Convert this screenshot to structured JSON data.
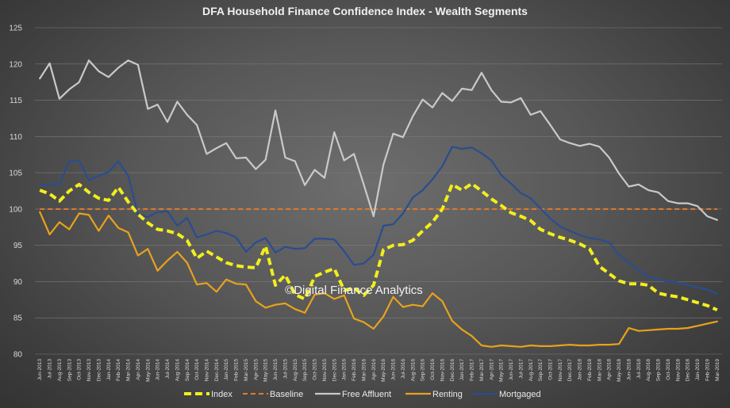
{
  "chart_data": {
    "type": "line",
    "title": "DFA Household Finance Confidence Index - Wealth Segments",
    "watermark": "©Digital Finance Analytics",
    "ylim": [
      80,
      125
    ],
    "yticks": [
      80,
      85,
      90,
      95,
      100,
      105,
      110,
      115,
      120,
      125
    ],
    "grid": "horizontal",
    "legend_position": "bottom",
    "x": [
      "Jun-2013",
      "Jul-2013",
      "Aug-2013",
      "Sep-2013",
      "Oct-2013",
      "Nov-2013",
      "Dec-2013",
      "Jan-2014",
      "Feb-2014",
      "Mar-2014",
      "Apr-2014",
      "May-2014",
      "Jun-2014",
      "Jul-2014",
      "Aug-2014",
      "Sep-2014",
      "Oct-2014",
      "Nov-2014",
      "Dec-2014",
      "Jan-2015",
      "Feb-2015",
      "Mar-2015",
      "Apr-2015",
      "May-2015",
      "Jun-2015",
      "Jul-2015",
      "Aug-2015",
      "Sep-2015",
      "Oct-2015",
      "Nov-2015",
      "Dec-2015",
      "Jan-2016",
      "Feb-2016",
      "Mar-2016",
      "Apr-2016",
      "May-2016",
      "Jun-2016",
      "Jul-2016",
      "Aug-2016",
      "Sep-2016",
      "Oct-2016",
      "Nov-2016",
      "Dec-2016",
      "Jan-2017",
      "Feb-2017",
      "Mar-2017",
      "Apr-2017",
      "May-2017",
      "Jun-2017",
      "Jul-2017",
      "Aug-2017",
      "Sep-2017",
      "Oct-2017",
      "Nov-2017",
      "Dec-2017",
      "Jan-2018",
      "Feb-2018",
      "Mar-2018",
      "Apr-2018",
      "May-2018",
      "Jun-2018",
      "Jul-2018",
      "Aug-2018",
      "Sep-2018",
      "Oct-2018",
      "Nov-2018",
      "Dec-2018",
      "Jan-2019",
      "Feb-2019",
      "Mar-2019"
    ],
    "series": [
      {
        "name": "Index",
        "color": "#f2ee1c",
        "style": "dashed-thick",
        "values": [
          102.6,
          102.1,
          101.1,
          102.5,
          103.4,
          102.3,
          101.5,
          101.2,
          103.0,
          101.0,
          99.3,
          98.1,
          97.2,
          97.0,
          96.6,
          95.7,
          93.2,
          94.2,
          93.4,
          92.6,
          92.2,
          92.0,
          91.9,
          94.9,
          89.5,
          90.9,
          88.2,
          87.6,
          90.7,
          91.3,
          91.8,
          88.8,
          89.1,
          88.1,
          89.5,
          94.4,
          95.0,
          95.1,
          95.7,
          97.0,
          98.2,
          100.0,
          103.4,
          102.6,
          103.5,
          102.5,
          101.4,
          100.5,
          99.5,
          99.0,
          98.4,
          97.2,
          96.6,
          96.1,
          95.7,
          95.2,
          94.5,
          92.1,
          91.1,
          90.1,
          89.7,
          89.7,
          89.5,
          88.4,
          88.1,
          87.9,
          87.5,
          87.1,
          86.7,
          86.1
        ]
      },
      {
        "name": "Baseline",
        "color": "#e27b2d",
        "style": "dashed",
        "values": [
          100,
          100,
          100,
          100,
          100,
          100,
          100,
          100,
          100,
          100,
          100,
          100,
          100,
          100,
          100,
          100,
          100,
          100,
          100,
          100,
          100,
          100,
          100,
          100,
          100,
          100,
          100,
          100,
          100,
          100,
          100,
          100,
          100,
          100,
          100,
          100,
          100,
          100,
          100,
          100,
          100,
          100,
          100,
          100,
          100,
          100,
          100,
          100,
          100,
          100,
          100,
          100,
          100,
          100,
          100,
          100,
          100,
          100,
          100,
          100,
          100,
          100,
          100,
          100,
          100,
          100,
          100,
          100,
          100,
          100
        ]
      },
      {
        "name": "Free Affluent",
        "color": "#c9c9c9",
        "style": "solid",
        "values": [
          118.0,
          120.1,
          115.2,
          116.5,
          117.5,
          120.5,
          119.0,
          118.2,
          119.5,
          120.5,
          119.9,
          113.8,
          114.4,
          112.0,
          114.8,
          113.0,
          111.6,
          107.6,
          108.4,
          109.1,
          107.0,
          107.1,
          105.5,
          106.8,
          113.6,
          107.1,
          106.6,
          103.3,
          105.4,
          104.3,
          110.6,
          106.7,
          107.6,
          103.4,
          99.0,
          106.1,
          110.4,
          109.9,
          112.8,
          115.1,
          114.0,
          116.0,
          114.9,
          116.6,
          116.4,
          118.8,
          116.4,
          114.8,
          114.7,
          115.3,
          113.0,
          113.5,
          111.6,
          109.6,
          109.1,
          108.7,
          109.0,
          108.6,
          107.1,
          104.9,
          103.1,
          103.4,
          102.6,
          102.3,
          101.1,
          100.8,
          100.8,
          100.4,
          99.0,
          98.5
        ]
      },
      {
        "name": "Renting",
        "color": "#e8a21b",
        "style": "solid",
        "values": [
          99.6,
          96.5,
          98.2,
          97.2,
          99.4,
          99.2,
          97.0,
          99.1,
          97.4,
          96.8,
          93.6,
          94.5,
          91.5,
          92.9,
          94.1,
          92.6,
          89.6,
          89.8,
          88.6,
          90.3,
          89.7,
          89.6,
          87.3,
          86.4,
          86.8,
          87.0,
          86.2,
          85.7,
          88.2,
          88.4,
          87.6,
          88.1,
          84.9,
          84.4,
          83.5,
          85.2,
          87.9,
          86.5,
          86.8,
          86.6,
          88.4,
          87.3,
          84.6,
          83.4,
          82.5,
          81.2,
          81.0,
          81.2,
          81.1,
          81.0,
          81.2,
          81.1,
          81.1,
          81.2,
          81.3,
          81.2,
          81.2,
          81.3,
          81.3,
          81.4,
          83.6,
          83.2,
          83.3,
          83.4,
          83.5,
          83.5,
          83.6,
          83.9,
          84.2,
          84.5
        ]
      },
      {
        "name": "Mortgaged",
        "color": "#2a4d8f",
        "style": "solid",
        "values": [
          103.3,
          103.4,
          103.4,
          106.6,
          106.7,
          104.0,
          104.6,
          105.1,
          106.6,
          104.6,
          99.3,
          98.9,
          99.6,
          99.7,
          97.7,
          98.8,
          96.1,
          96.5,
          97.0,
          96.7,
          96.1,
          94.1,
          95.4,
          96.0,
          94.0,
          94.8,
          94.5,
          94.6,
          95.9,
          95.9,
          95.8,
          94.2,
          92.3,
          92.5,
          93.7,
          97.7,
          97.9,
          99.4,
          101.6,
          102.6,
          104.1,
          105.9,
          108.6,
          108.3,
          108.5,
          107.7,
          106.7,
          104.7,
          103.5,
          102.2,
          101.5,
          100.1,
          98.7,
          97.6,
          97.0,
          96.4,
          96.0,
          95.8,
          95.4,
          93.7,
          92.6,
          91.6,
          90.7,
          90.3,
          90.0,
          89.9,
          89.5,
          89.2,
          88.9,
          88.3
        ]
      }
    ]
  }
}
